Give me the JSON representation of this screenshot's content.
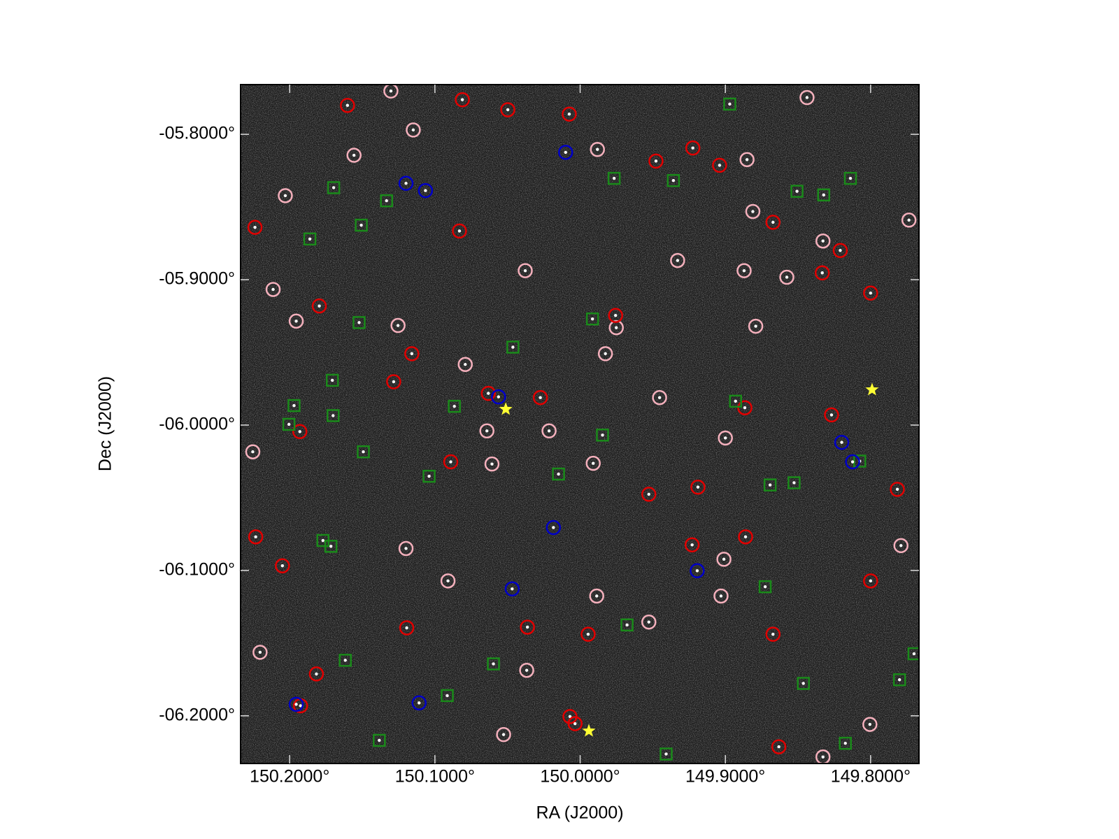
{
  "chart_data": {
    "type": "scatter",
    "xlabel": "RA (J2000)",
    "ylabel": "Dec (J2000)",
    "xlim": [
      150.2338,
      149.7667
    ],
    "ylim": [
      -6.2328,
      -5.7658
    ],
    "xticks": [
      {
        "value": 150.2,
        "label": "150.2000°"
      },
      {
        "value": 150.1,
        "label": "150.1000°"
      },
      {
        "value": 150.0,
        "label": "150.0000°"
      },
      {
        "value": 149.9,
        "label": "149.9000°"
      },
      {
        "value": 149.8,
        "label": "149.8000°"
      }
    ],
    "yticks": [
      {
        "value": -5.8,
        "label": "-05.8000°"
      },
      {
        "value": -5.9,
        "label": "-05.9000°"
      },
      {
        "value": -6.0,
        "label": "-06.0000°"
      },
      {
        "value": -6.1,
        "label": "-06.1000°"
      },
      {
        "value": -6.2,
        "label": "-06.2000°"
      }
    ],
    "series": [
      {
        "color": "#f4b0bc",
        "marker": "circle",
        "x": [
          150.1303,
          150.1149,
          150.203,
          150.1557,
          149.9881,
          149.8851,
          149.8438,
          149.8811,
          149.8328,
          149.9329,
          150.0378,
          149.8871,
          149.8577,
          150.2114,
          150.1955,
          150.1254,
          149.9751,
          149.8791,
          150.0791,
          149.9826,
          149.9453,
          150.0642,
          150.0214,
          149.9,
          150.0607,
          149.991,
          150.1199,
          149.901,
          150.091,
          149.9886,
          149.903,
          149.7791,
          150.0368,
          149.9527,
          150.0527,
          149.8005,
          149.8328,
          150.2204,
          150.2254,
          149.7736
        ],
        "values": [
          -5.7702,
          -5.797,
          -5.8422,
          -5.8144,
          -5.8104,
          -5.8174,
          -5.7747,
          -5.8531,
          -5.8734,
          -5.8868,
          -5.8938,
          -5.8938,
          -5.8983,
          -5.9067,
          -5.9285,
          -5.9315,
          -5.933,
          -5.932,
          -5.9583,
          -5.9509,
          -5.9811,
          -6.004,
          -6.004,
          -6.0089,
          -6.0268,
          -6.0263,
          -6.0849,
          -6.0923,
          -6.1072,
          -6.1176,
          -6.1176,
          -6.0829,
          -6.1687,
          -6.1355,
          -6.2129,
          -6.2059,
          -6.2283,
          -6.1563,
          -6.0184,
          -5.859
        ]
      },
      {
        "color": "#e00000",
        "marker": "circle",
        "x": [
          150.1602,
          150.2239,
          150.0811,
          150.0498,
          150.0075,
          149.9478,
          149.9224,
          149.904,
          149.8209,
          149.8333,
          150.1159,
          150.0632,
          150.0274,
          149.8866,
          149.8269,
          150.193,
          150.1284,
          149.9189,
          149.7816,
          150.2234,
          150.205,
          149.8861,
          150.0363,
          149.9945,
          149.8672,
          150.1194,
          150.1816,
          150.007,
          150.0035,
          149.8632,
          150.1925,
          149.8,
          149.9229,
          149.9527,
          150.0891,
          149.9756,
          149.8,
          150.0831,
          149.8672,
          150.1796
        ],
        "values": [
          -5.7801,
          -5.864,
          -5.7762,
          -5.7831,
          -5.7861,
          -5.8184,
          -5.8094,
          -5.8213,
          -5.8799,
          -5.8953,
          -5.9509,
          -5.9782,
          -5.9811,
          -5.9881,
          -5.993,
          -6.0045,
          -5.9702,
          -6.0427,
          -6.0442,
          -6.0769,
          -6.0968,
          -6.0769,
          -6.139,
          -6.1439,
          -6.1439,
          -6.1395,
          -6.1712,
          -6.2005,
          -6.2054,
          -6.2213,
          -6.1931,
          -6.1072,
          -6.0824,
          -6.0476,
          -6.0253,
          -5.9246,
          -5.9092,
          -5.8665,
          -5.8605,
          -5.9181
        ]
      },
      {
        "color": "#1a8a1a",
        "marker": "square",
        "x": [
          150.1697,
          150.1333,
          150.1507,
          150.1861,
          149.9766,
          149.9358,
          149.897,
          149.8507,
          149.8323,
          149.8139,
          150.1522,
          149.9915,
          150.0463,
          150.1706,
          150.197,
          150.1701,
          150.2005,
          150.0866,
          149.893,
          149.9846,
          150.1493,
          150.104,
          150.0149,
          149.8692,
          149.8527,
          149.8075,
          150.1771,
          150.1716,
          149.8726,
          149.9677,
          150.1617,
          150.0597,
          150.0915,
          149.8463,
          149.7801,
          149.7701,
          150.1383,
          149.9408,
          149.8174
        ],
        "values": [
          -5.8367,
          -5.8457,
          -5.8625,
          -5.872,
          -5.8303,
          -5.8318,
          -5.7792,
          -5.8392,
          -5.8417,
          -5.8303,
          -5.9295,
          -5.927,
          -5.9464,
          -5.9692,
          -5.9866,
          -5.9935,
          -5.9995,
          -5.9871,
          -5.9836,
          -6.0069,
          -6.0184,
          -6.0352,
          -6.0337,
          -6.0412,
          -6.0397,
          -6.0248,
          -6.0794,
          -6.0834,
          -6.1112,
          -6.1375,
          -6.1618,
          -6.1643,
          -6.1861,
          -6.1777,
          -6.1752,
          -6.1573,
          -6.2169,
          -6.2263,
          -6.2189
        ]
      },
      {
        "color": "#0000c8",
        "marker": "circle",
        "x": [
          150.1199,
          150.1065,
          150.01,
          150.0562,
          150.0184,
          150.0468,
          149.9194,
          149.8199,
          149.8124,
          150.1955,
          150.1109
        ],
        "values": [
          -5.8337,
          -5.8387,
          -5.8124,
          -5.9806,
          -6.0705,
          -6.1127,
          -6.1002,
          -6.0119,
          -6.0253,
          -6.1921,
          -6.1911
        ]
      },
      {
        "color": "#ffff33",
        "marker": "star",
        "x": [
          150.0512,
          149.799,
          149.994
        ],
        "values": [
          -5.9891,
          -5.9757,
          -6.2104
        ]
      }
    ]
  }
}
